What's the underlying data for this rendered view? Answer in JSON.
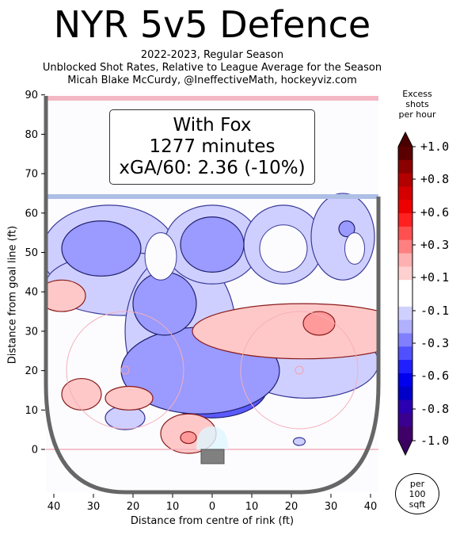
{
  "title": "NYR 5v5 Defence",
  "subtitle_lines": [
    "2022-2023, Regular Season",
    "Unblocked Shot Rates, Relative to League Average for the Season",
    "Micah Blake McCurdy, @IneffectiveMath, hockeyviz.com"
  ],
  "infobox": {
    "line1": "With Fox",
    "line2": "1277 minutes",
    "line3": "xGA/60: 2.36 (-10%)"
  },
  "colorbar": {
    "title_lines": [
      "Excess",
      "shots",
      "per hour"
    ],
    "labels": [
      "+1.0",
      "+0.8",
      "+0.6",
      "+0.3",
      "+0.1",
      "-0.1",
      "-0.3",
      "-0.6",
      "-0.8",
      "-1.0"
    ],
    "colors": [
      "#5a0000",
      "#8b0000",
      "#b30000",
      "#d40000",
      "#ee0000",
      "#ff2020",
      "#ff5050",
      "#ff8080",
      "#ffb0b0",
      "#ffd0d0",
      "#ffffff",
      "#ffffff",
      "#d0d0ff",
      "#b0b0ff",
      "#8080ff",
      "#5050ff",
      "#2020ff",
      "#0000ee",
      "#0000c8",
      "#2a00b0",
      "#3a008f",
      "#40006a"
    ]
  },
  "per100": [
    "per",
    "100",
    "sqft"
  ],
  "chart_data": {
    "type": "heatmap",
    "xlabel": "Distance from centre of rink (ft)",
    "ylabel": "Distance from goal line (ft)",
    "xlim": [
      -42,
      42
    ],
    "ylim": [
      -11,
      90
    ],
    "xticks": [
      40,
      30,
      20,
      10,
      0,
      10,
      20,
      30,
      40
    ],
    "yticks": [
      0,
      10,
      20,
      30,
      40,
      50,
      60,
      70,
      80,
      90
    ],
    "regions": [
      {
        "x": 0,
        "y": 15,
        "rx": 8,
        "ry": 5,
        "level": -1.0
      },
      {
        "x": 0,
        "y": 16,
        "rx": 14,
        "ry": 8,
        "level": -0.6
      },
      {
        "x": -3,
        "y": 20,
        "rx": 20,
        "ry": 11,
        "level": -0.3
      },
      {
        "x": -28,
        "y": 51,
        "rx": 10,
        "ry": 7,
        "level": -0.3
      },
      {
        "x": 0,
        "y": 52,
        "rx": 8,
        "ry": 7,
        "level": -0.3
      },
      {
        "x": -12,
        "y": 37,
        "rx": 8,
        "ry": 8,
        "level": -0.3
      },
      {
        "x": 34,
        "y": 56,
        "rx": 2,
        "ry": 2,
        "level": -0.3
      },
      {
        "x": 23,
        "y": 30,
        "rx": 28,
        "ry": 7,
        "level": 0.1
      },
      {
        "x": 27,
        "y": 32,
        "rx": 4,
        "ry": 3,
        "level": 0.3
      },
      {
        "x": -38,
        "y": 39,
        "rx": 6,
        "ry": 4,
        "level": 0.1
      },
      {
        "x": -33,
        "y": 14,
        "rx": 5,
        "ry": 4,
        "level": 0.1
      },
      {
        "x": -21,
        "y": 13,
        "rx": 6,
        "ry": 3,
        "level": 0.1
      },
      {
        "x": -6,
        "y": 4,
        "rx": 7,
        "ry": 5,
        "level": 0.1
      },
      {
        "x": -6,
        "y": 3,
        "rx": 2,
        "ry": 1.5,
        "level": 0.3
      }
    ]
  }
}
